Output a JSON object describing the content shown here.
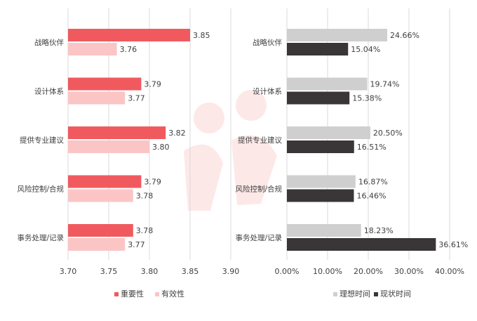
{
  "palette": {
    "importance": "#f05a5f",
    "effectiveness": "#fbc5c6",
    "ideal": "#cfcfcf",
    "current": "#3a3536",
    "grid": "#d9d9d9",
    "text": "#404040",
    "watermark": "#fde8e8"
  },
  "chart_data": [
    {
      "type": "bar",
      "orientation": "horizontal",
      "categories": [
        "战略伙伴",
        "设计体系",
        "提供专业建议",
        "风险控制/合规",
        "事务处理/记录"
      ],
      "series": [
        {
          "name": "重要性",
          "values": [
            3.85,
            3.79,
            3.82,
            3.79,
            3.78
          ],
          "color": "#f05a5f"
        },
        {
          "name": "有效性",
          "values": [
            3.76,
            3.77,
            3.8,
            3.78,
            3.77
          ],
          "color": "#fbc5c6"
        }
      ],
      "data_labels": [
        [
          "3.85",
          "3.79",
          "3.82",
          "3.79",
          "3.78"
        ],
        [
          "3.76",
          "3.77",
          "3.80",
          "3.78",
          "3.77"
        ]
      ],
      "xlim": [
        3.7,
        3.9
      ],
      "xticks": [
        3.7,
        3.75,
        3.8,
        3.85,
        3.9
      ],
      "xtick_labels": [
        "3.70",
        "3.75",
        "3.80",
        "3.85",
        "3.90"
      ],
      "grid": true,
      "legend": "bottom"
    },
    {
      "type": "bar",
      "orientation": "horizontal",
      "categories": [
        "战略伙伴",
        "设计体系",
        "提供专业建议",
        "风险控制/合规",
        "事务处理/记录"
      ],
      "series": [
        {
          "name": "理想时间",
          "values": [
            24.66,
            19.74,
            20.5,
            16.87,
            18.23
          ],
          "color": "#cfcfcf"
        },
        {
          "name": "现状时间",
          "values": [
            15.04,
            15.38,
            16.51,
            16.46,
            36.61
          ],
          "color": "#3a3536"
        }
      ],
      "data_labels": [
        [
          "24.66%",
          "19.74%",
          "20.50%",
          "16.87%",
          "18.23%"
        ],
        [
          "15.04%",
          "15.38%",
          "16.51%",
          "16.46%",
          "36.61%"
        ]
      ],
      "unit": "%",
      "xlim": [
        0,
        40
      ],
      "xticks": [
        0,
        10,
        20,
        30,
        40
      ],
      "xtick_labels": [
        "0.00%",
        "10.00%",
        "20.00%",
        "30.00%",
        "40.00%"
      ],
      "grid": true,
      "legend": "bottom"
    }
  ]
}
